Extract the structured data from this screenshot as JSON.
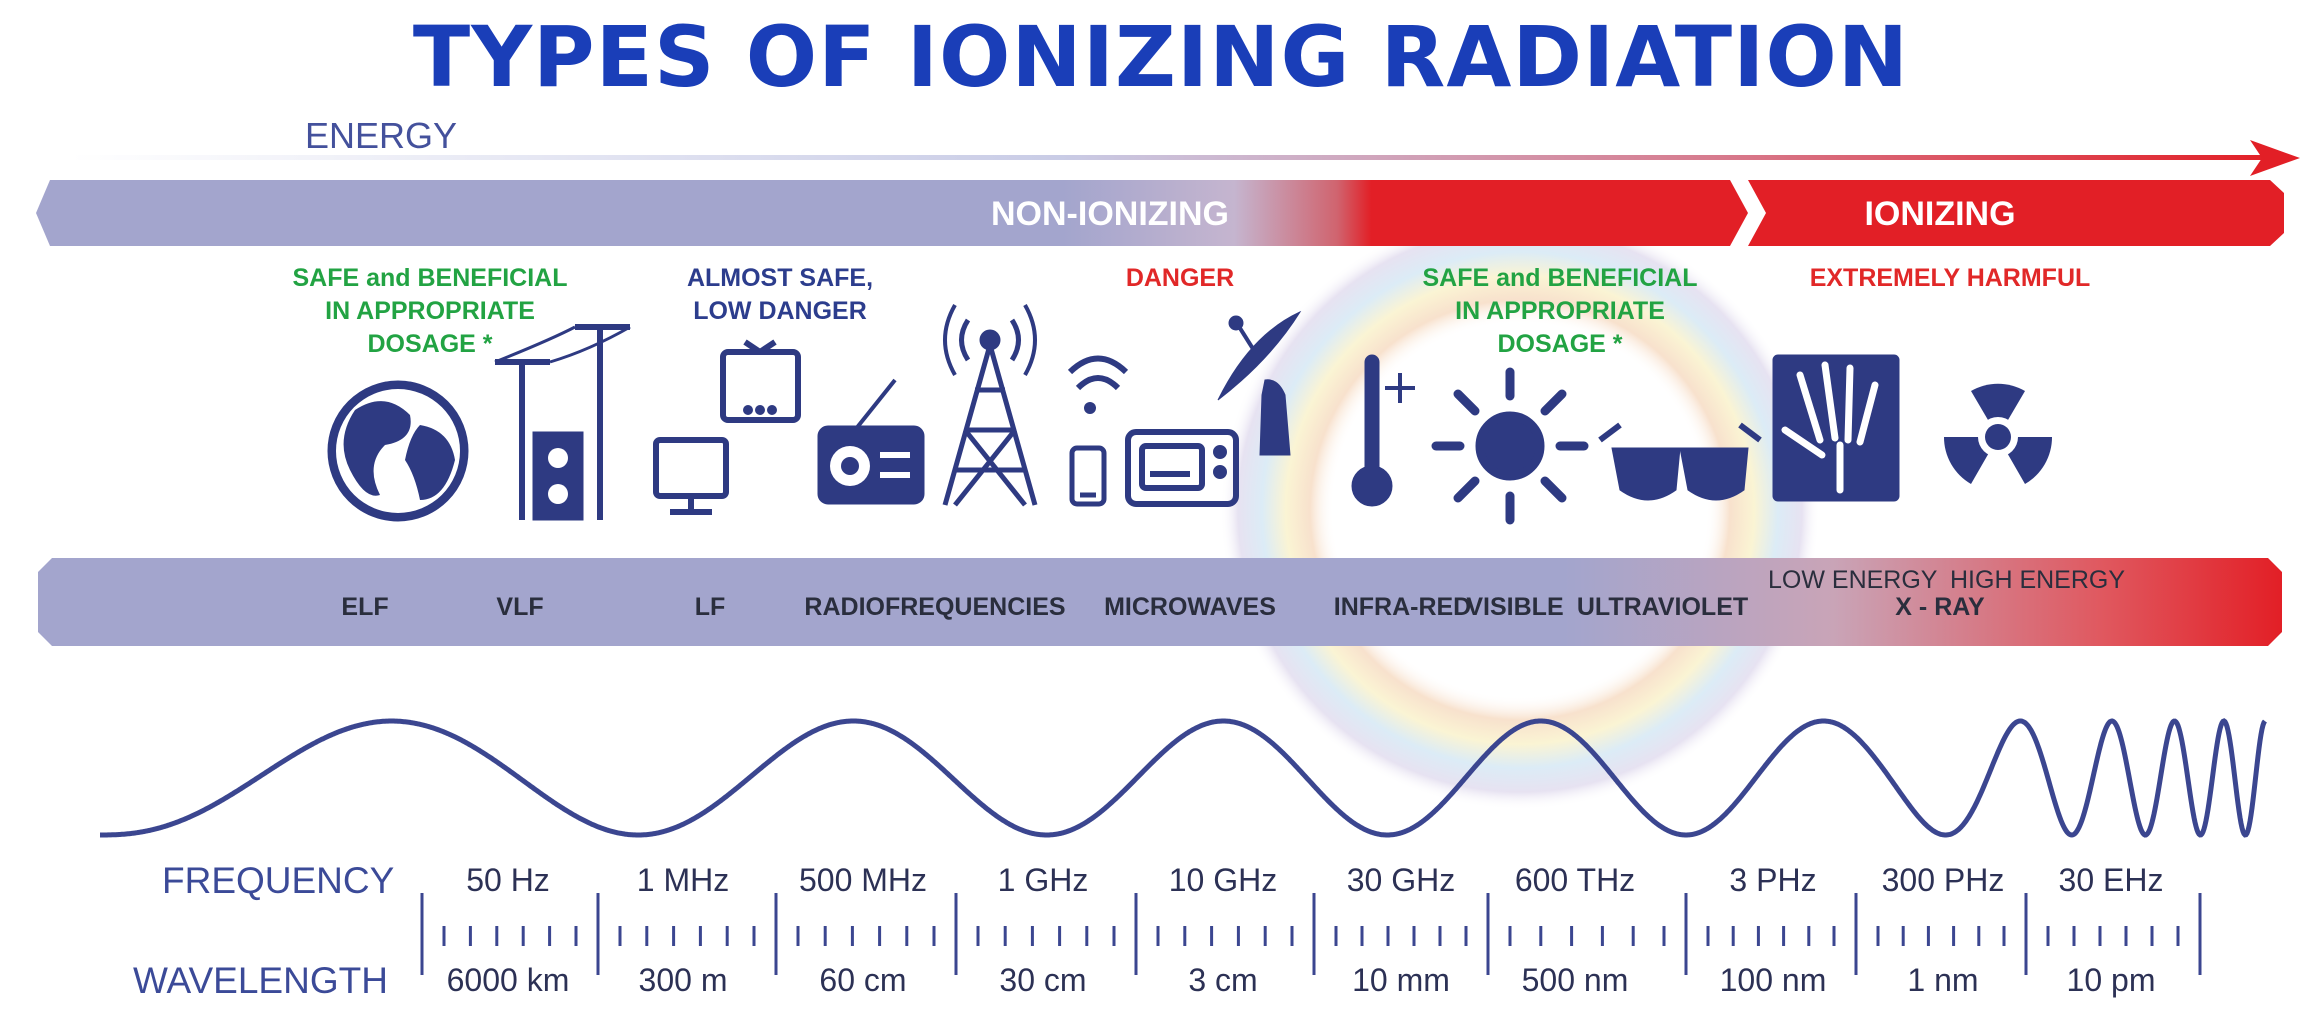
{
  "title": "TYPES OF IONIZING RADIATION",
  "energy_label": "ENERGY",
  "bands": {
    "non_ionizing": "NON-IONIZING",
    "ionizing": "IONIZING"
  },
  "notes": {
    "safe_left": [
      "SAFE and BENEFICIAL",
      "IN APPROPRIATE",
      "DOSAGE *"
    ],
    "almost_safe": [
      "ALMOST SAFE,",
      "LOW DANGER"
    ],
    "danger": "DANGER",
    "safe_right": [
      "SAFE and BENEFICIAL",
      "IN APPROPRIATE",
      "DOSAGE *"
    ],
    "harmful": "EXTREMELY HARMFUL"
  },
  "spectrum": [
    "ELF",
    "VLF",
    "LF",
    "RADIOFREQUENCIES",
    "MICROWAVES",
    "INFRA-RED",
    "VISIBLE",
    "ULTRAVIOLET"
  ],
  "xray": {
    "low": "LOW ENERGY",
    "high": "HIGH ENERGY",
    "label": "X - RAY"
  },
  "frequency_title": "FREQUENCY",
  "wavelength_title": "WAVELENGTH",
  "frequencies": [
    "50 Hz",
    "1 MHz",
    "500 MHz",
    "1 GHz",
    "10 GHz",
    "30 GHz",
    "600 THz",
    "3 PHz",
    "300 PHz",
    "30 EHz"
  ],
  "wavelengths": [
    "6000 km",
    "300 m",
    "60 cm",
    "30 cm",
    "3 cm",
    "10 mm",
    "500 nm",
    "100 nm",
    "1 nm",
    "10 pm"
  ],
  "icons": [
    "earth-icon",
    "power-pole-icon",
    "power-outlet-icon",
    "monitor-icon",
    "tv-icon",
    "radio-icon",
    "radio-tower-icon",
    "wifi-icon",
    "phone-icon",
    "microwave-oven-icon",
    "satellite-dish-icon",
    "thermometer-icon",
    "sun-icon",
    "sunglasses-icon",
    "xray-hand-icon",
    "radiation-icon"
  ],
  "colors": {
    "title": "#1a3eb8",
    "band": "#a3a5cd",
    "ionizing": "#e21f26",
    "icon": "#2e3a82",
    "safe": "#22a343",
    "danger": "#e12828"
  }
}
